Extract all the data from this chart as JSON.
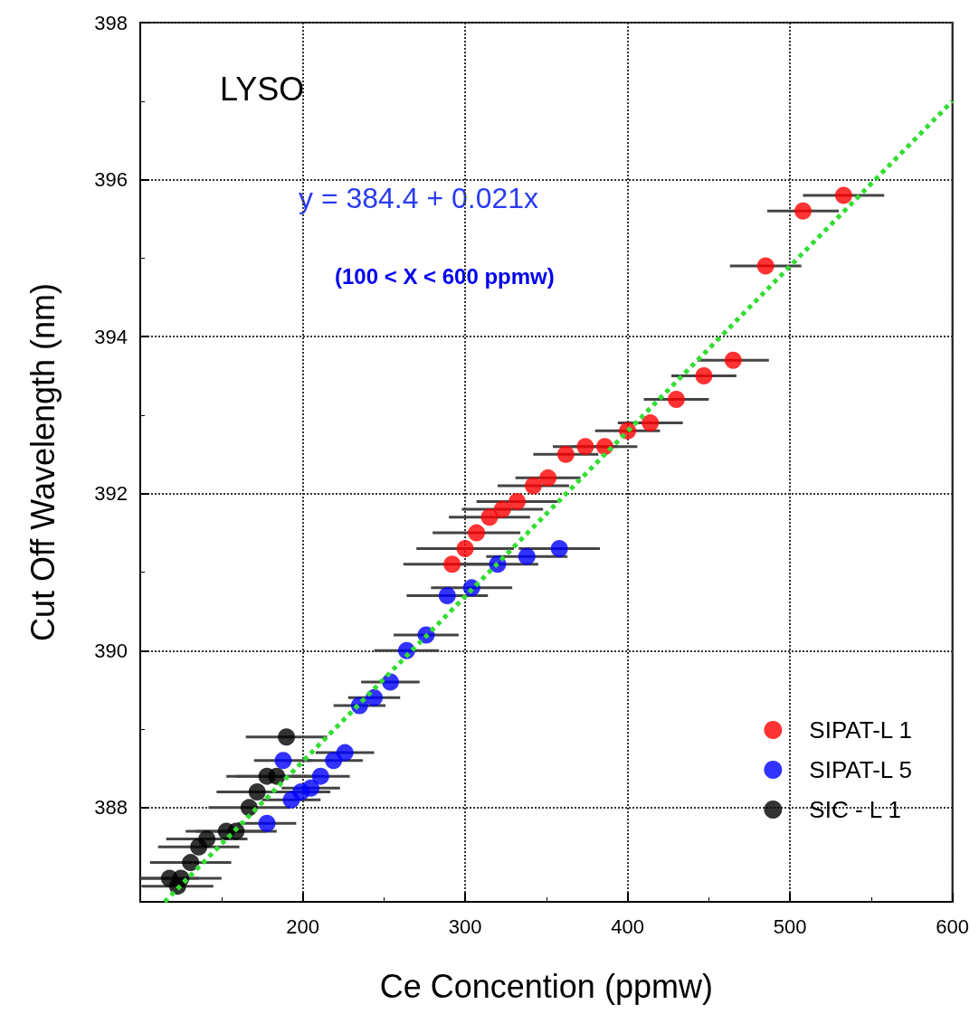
{
  "chart_data": {
    "type": "scatter",
    "xlabel": "Ce Concention (ppmw)",
    "ylabel": "Cut Off Wavelength (nm)",
    "xlim": [
      100,
      600
    ],
    "xticks": [
      {
        "value": 100,
        "label": null
      },
      200,
      300,
      400,
      500,
      600
    ],
    "ylim": [
      386.8,
      398
    ],
    "yticks": [
      388,
      390,
      392,
      394,
      396,
      398
    ],
    "grid": true,
    "legend": "bottom right",
    "marker": "circle",
    "annotations": [
      "LYSO",
      "y = 384.4 + 0.021x",
      "(100 < X < 600 ppmw)"
    ],
    "series": [
      {
        "name": "SIPAT-L 1",
        "color": "#ff0000",
        "x": [
          533,
          508,
          485,
          465,
          447,
          430,
          414,
          400,
          386,
          374,
          362,
          351,
          342,
          332,
          323,
          315,
          307,
          300,
          292
        ],
        "values": [
          395.8,
          395.6,
          394.9,
          393.7,
          393.5,
          393.2,
          392.9,
          392.8,
          392.6,
          392.6,
          392.5,
          392.2,
          392.1,
          391.9,
          391.8,
          391.7,
          391.5,
          391.3,
          391.1
        ],
        "xerrors": [
          25,
          22,
          22,
          22,
          20,
          20,
          20,
          20,
          20,
          20,
          20,
          20,
          22,
          25,
          25,
          25,
          27,
          30,
          30
        ]
      },
      {
        "name": "SIPAT-L 5",
        "color": "#0000ff",
        "x": [
          358,
          338,
          320,
          304,
          289,
          276,
          264,
          254,
          244,
          235,
          226,
          219,
          211,
          205,
          199,
          193,
          188,
          178
        ],
        "values": [
          391.3,
          391.2,
          391.1,
          390.8,
          390.7,
          390.2,
          390.0,
          389.6,
          389.4,
          389.3,
          388.7,
          388.6,
          388.4,
          388.25,
          388.2,
          388.1,
          388.6,
          387.8
        ],
        "xerrors": [
          25,
          25,
          25,
          25,
          25,
          20,
          20,
          18,
          16,
          16,
          18,
          18,
          18,
          18,
          18,
          18,
          18,
          18
        ]
      },
      {
        "name": "SIC - L 1",
        "color": "#000000",
        "x": [
          190,
          184,
          178,
          172,
          167,
          159,
          153,
          141,
          136,
          131,
          125,
          118,
          123
        ],
        "values": [
          388.9,
          388.4,
          388.4,
          388.2,
          388.0,
          387.7,
          387.7,
          387.6,
          387.5,
          387.3,
          387.1,
          387.1,
          387.0
        ],
        "xerrors": [
          25,
          25,
          25,
          25,
          25,
          25,
          25,
          25,
          25,
          25,
          25,
          18,
          22
        ]
      },
      {
        "type": "line",
        "color": "#33dd33",
        "line_style": "dotted",
        "marker": "none",
        "x": [
          115,
          600
        ],
        "values": [
          386.8,
          397.0
        ]
      }
    ]
  }
}
